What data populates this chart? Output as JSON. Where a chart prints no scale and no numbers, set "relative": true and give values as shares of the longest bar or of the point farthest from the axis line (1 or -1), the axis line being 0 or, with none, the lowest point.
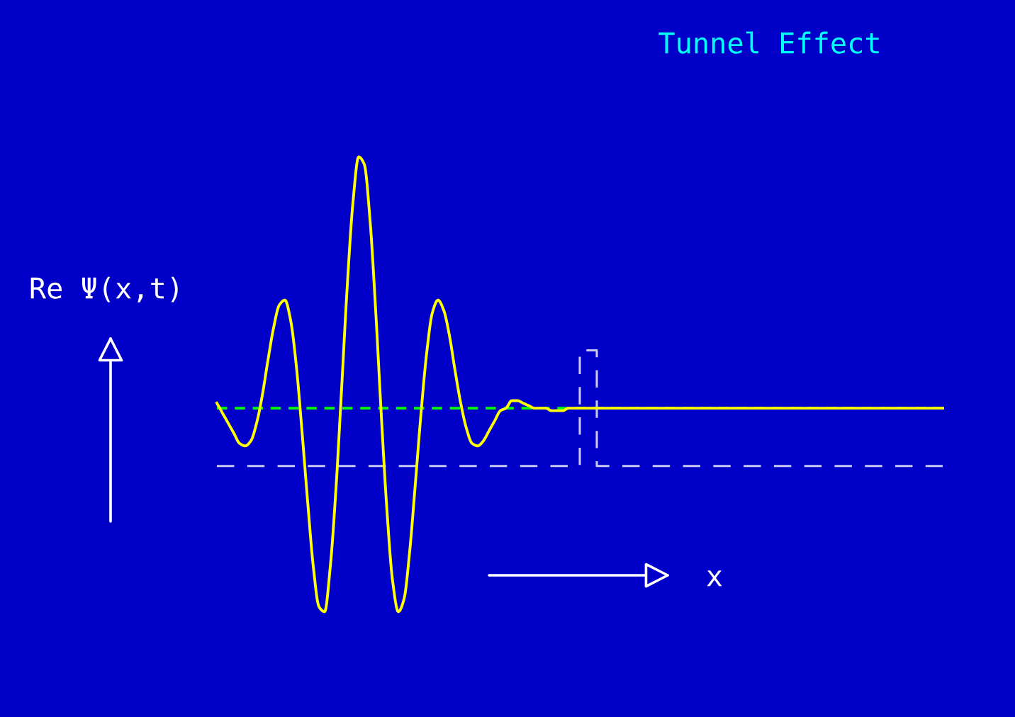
{
  "chart_data": {
    "type": "line",
    "title": "Tunnel Effect",
    "ylabel": "Re Ψ(x,t)",
    "xlabel": "x",
    "relative": true,
    "categories": [
      null,
      null,
      null,
      null,
      null,
      null,
      null,
      null,
      null,
      null,
      null,
      null,
      null,
      null,
      null,
      null,
      null,
      null,
      null,
      null,
      null,
      null,
      null,
      null,
      null,
      null,
      null,
      null,
      null,
      null,
      null,
      null,
      null,
      null,
      null,
      null,
      null,
      null,
      null,
      null,
      null,
      null,
      null,
      null,
      null,
      null,
      null,
      null,
      null,
      null,
      null,
      null,
      null,
      null,
      null,
      null,
      null,
      null,
      null,
      null,
      null,
      null,
      null,
      null,
      null,
      null,
      null,
      null,
      null,
      null,
      null,
      null,
      null,
      null,
      null,
      null,
      null,
      null,
      null,
      null,
      null,
      null,
      null,
      null,
      null,
      null,
      null,
      null,
      null,
      null,
      null,
      null,
      null,
      null,
      null,
      null,
      null,
      null,
      null,
      null,
      null,
      null,
      null,
      null,
      null,
      null,
      null,
      null,
      null,
      null,
      null,
      null,
      null,
      null,
      null,
      null,
      null,
      null,
      null,
      null,
      null,
      null,
      null,
      null,
      null,
      null,
      null,
      null,
      null
    ],
    "series": [
      {
        "color": "#ffff00",
        "line_style": "solid",
        "values": [
          0.02,
          -0.02,
          -0.06,
          -0.1,
          -0.14,
          -0.15,
          -0.13,
          -0.06,
          0.05,
          0.19,
          0.32,
          0.41,
          0.43,
          0.35,
          0.17,
          -0.09,
          -0.37,
          -0.63,
          -0.79,
          -0.81,
          -0.63,
          -0.32,
          0.08,
          0.49,
          0.82,
          1.0,
          0.97,
          0.75,
          0.39,
          -0.03,
          -0.41,
          -0.69,
          -0.81,
          -0.76,
          -0.57,
          -0.3,
          -0.02,
          0.22,
          0.38,
          0.43,
          0.39,
          0.29,
          0.15,
          0.02,
          -0.08,
          -0.14,
          -0.15,
          -0.13,
          -0.09,
          -0.05,
          -0.01,
          0,
          0.03,
          0.03,
          0.02,
          0.01,
          0,
          0,
          0,
          -0.01,
          -0.01,
          -0.01,
          0,
          0,
          0,
          0,
          0,
          0,
          0,
          0,
          0,
          0,
          0,
          0,
          0,
          0,
          0,
          0,
          0,
          0,
          0,
          0,
          0,
          0,
          0,
          0,
          0,
          0,
          0,
          0,
          0,
          0,
          0,
          0,
          0,
          0,
          0,
          0,
          0,
          0,
          0,
          0,
          0,
          0,
          0,
          0,
          0,
          0,
          0,
          0,
          0,
          0,
          0,
          0,
          0,
          0,
          0,
          0,
          0,
          0,
          0,
          0,
          0,
          0,
          0,
          0,
          0,
          0,
          0
        ]
      },
      {
        "type": "step",
        "color": "#c8c8f0",
        "line_style": "dashed",
        "values": [
          -0.23,
          -0.23,
          -0.23,
          -0.23,
          -0.23,
          -0.23,
          -0.23,
          -0.23,
          -0.23,
          -0.23,
          -0.23,
          -0.23,
          -0.23,
          -0.23,
          -0.23,
          -0.23,
          -0.23,
          -0.23,
          -0.23,
          -0.23,
          -0.23,
          -0.23,
          -0.23,
          -0.23,
          -0.23,
          -0.23,
          -0.23,
          -0.23,
          -0.23,
          -0.23,
          -0.23,
          -0.23,
          -0.23,
          -0.23,
          -0.23,
          -0.23,
          -0.23,
          -0.23,
          -0.23,
          -0.23,
          -0.23,
          -0.23,
          -0.23,
          -0.23,
          -0.23,
          -0.23,
          -0.23,
          -0.23,
          -0.23,
          -0.23,
          -0.23,
          -0.23,
          -0.23,
          -0.23,
          -0.23,
          -0.23,
          -0.23,
          -0.23,
          -0.23,
          -0.23,
          -0.23,
          -0.23,
          -0.23,
          -0.23,
          0.23,
          0.23,
          0.23,
          -0.23,
          -0.23,
          -0.23,
          -0.23,
          -0.23,
          -0.23,
          -0.23,
          -0.23,
          -0.23,
          -0.23,
          -0.23,
          -0.23,
          -0.23,
          -0.23,
          -0.23,
          -0.23,
          -0.23,
          -0.23,
          -0.23,
          -0.23,
          -0.23,
          -0.23,
          -0.23,
          -0.23,
          -0.23,
          -0.23,
          -0.23,
          -0.23,
          -0.23,
          -0.23,
          -0.23,
          -0.23,
          -0.23,
          -0.23,
          -0.23,
          -0.23,
          -0.23,
          -0.23,
          -0.23,
          -0.23,
          -0.23,
          -0.23,
          -0.23,
          -0.23,
          -0.23,
          -0.23,
          -0.23,
          -0.23,
          -0.23,
          -0.23,
          -0.23,
          -0.23,
          -0.23,
          -0.23,
          -0.23,
          -0.23,
          -0.23,
          -0.23,
          -0.23,
          -0.23,
          -0.23,
          -0.23
        ]
      }
    ],
    "ref_lines": [
      {
        "axis": "y",
        "value": 0,
        "color": "#00ff00",
        "line_style": "dashed"
      }
    ]
  }
}
